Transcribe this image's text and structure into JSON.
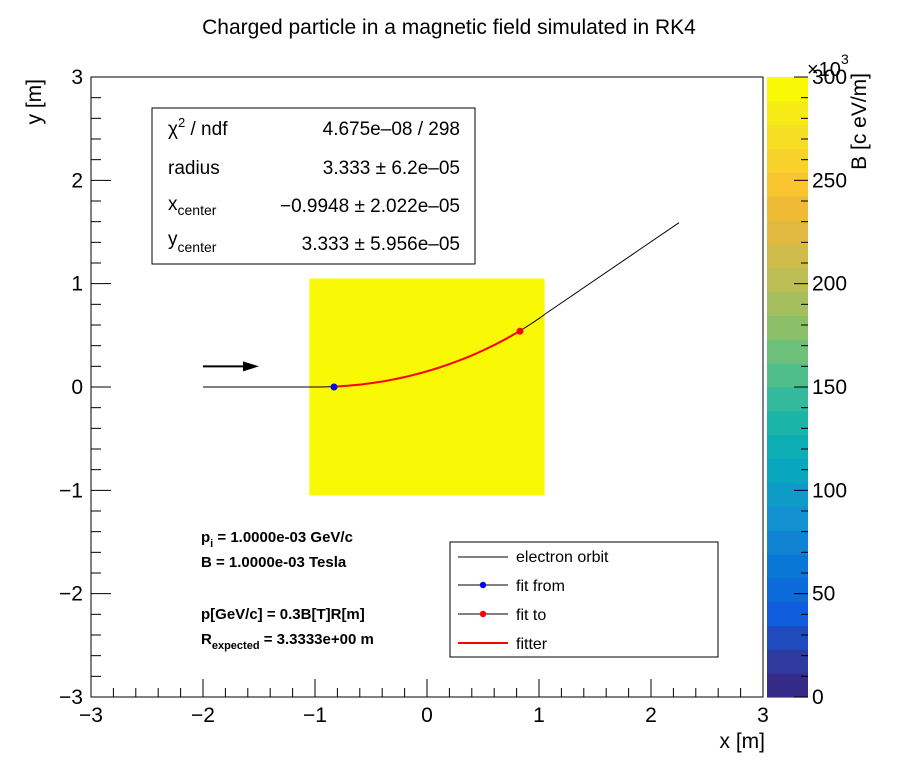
{
  "chart_data": {
    "type": "scatter",
    "title": "Charged particle in a magnetic field simulated in RK4",
    "xlabel": "x [m]",
    "ylabel": "y [m]",
    "xlim": [
      -3,
      3
    ],
    "ylim": [
      -3,
      3
    ],
    "x_ticks": [
      "−3",
      "−2",
      "−1",
      "0",
      "1",
      "2",
      "3"
    ],
    "y_ticks": [
      "−3",
      "−2",
      "−1",
      "0",
      "1",
      "2",
      "3"
    ],
    "grid": false,
    "field_region": {
      "x": [
        -1.05,
        1.05
      ],
      "y": [
        -1.05,
        1.05
      ],
      "value": 300000,
      "color": "#f9f905"
    },
    "colorbar": {
      "label": "B [c eV/m]",
      "multiplier": "×10",
      "multiplier_exponent": "3",
      "range": [
        0,
        300
      ],
      "ticks": [
        "0",
        "50",
        "100",
        "150",
        "200",
        "250",
        "300"
      ],
      "palette": [
        "#352a87",
        "#2e3a9e",
        "#1f4bbd",
        "#0f5cdd",
        "#0d6ad9",
        "#0977d5",
        "#1183d3",
        "#1390cf",
        "#0f9bc8",
        "#09a6bf",
        "#0cadb4",
        "#1bb4a9",
        "#33b99c",
        "#4fbe8b",
        "#6dc07a",
        "#8bc069",
        "#a6bf5e",
        "#bcbd54",
        "#cfbb4a",
        "#e1b940",
        "#f0bb34",
        "#f8c52e",
        "#f8d22b",
        "#f6df22",
        "#f7eb16",
        "#f9f905"
      ]
    },
    "series": [
      {
        "name": "electron orbit",
        "color": "#000000",
        "segments": [
          {
            "shape": "line",
            "from": [
              -2.0,
              0.0
            ],
            "to": [
              -1.0,
              0.0
            ]
          },
          {
            "shape": "arc",
            "center": [
              -0.9948,
              3.333
            ],
            "radius": 3.333,
            "x_range": [
              -1.0,
              1.05
            ]
          },
          {
            "shape": "line",
            "from": [
              1.05,
              0.703
            ],
            "to": [
              2.25,
              1.59
            ]
          }
        ]
      },
      {
        "name": "fit from",
        "color": "#0000ff",
        "x": [
          -0.83
        ],
        "y": [
          0.0
        ]
      },
      {
        "name": "fit to",
        "color": "#ff0000",
        "x": [
          0.83
        ],
        "y": [
          0.54
        ]
      },
      {
        "name": "fitter",
        "color": "#ff0000",
        "shape": "arc",
        "center": [
          -0.9948,
          3.333
        ],
        "radius": 3.333,
        "x_range": [
          -0.83,
          0.83
        ]
      }
    ],
    "arrow": {
      "from": [
        -2.0,
        0.2
      ],
      "to": [
        -1.5,
        0.2
      ]
    },
    "stats_box": {
      "rows": [
        {
          "label": "χ",
          "sup": "2",
          "label_tail": " / ndf",
          "value": "4.675e–08 / 298"
        },
        {
          "label": "radius",
          "value": "3.333 ± 6.2e–05"
        },
        {
          "label": "x",
          "sub": "center",
          "value": "−0.9948 ± 2.022e–05"
        },
        {
          "label": "y",
          "sub": "center",
          "value": "3.333 ± 5.956e–05"
        }
      ]
    },
    "annotations": [
      {
        "text": "p",
        "sub": "i",
        "tail": " = 1.0000e-03 GeV/c"
      },
      {
        "text": "B = 1.0000e-03 Tesla"
      },
      {
        "text": "p[GeV/c] = 0.3B[T]R[m]"
      },
      {
        "text": "R",
        "sub": "expected",
        "tail": " = 3.3333e+00 m"
      }
    ],
    "legend": {
      "position": "bottom-right",
      "entries": [
        {
          "label": "electron orbit",
          "style": "line",
          "color": "#000000"
        },
        {
          "label": "fit from",
          "style": "line-marker",
          "color": "#0000ff"
        },
        {
          "label": "fit to",
          "style": "line-marker",
          "color": "#ff0000"
        },
        {
          "label": "fitter",
          "style": "thick-line",
          "color": "#ff0000"
        }
      ]
    }
  }
}
